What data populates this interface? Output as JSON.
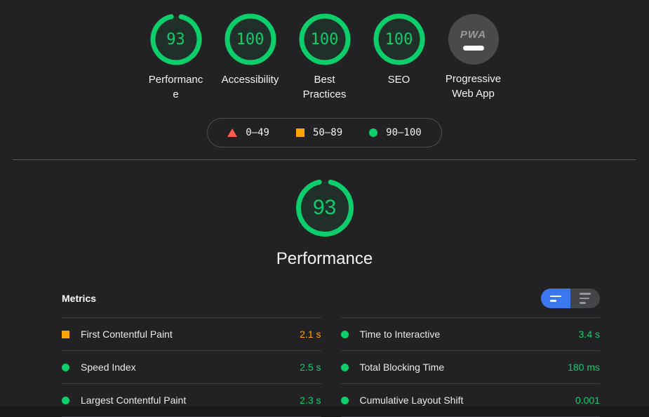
{
  "colors": {
    "pass": "#0cce6b",
    "average": "#ffa400",
    "fail": "#ff5a50",
    "accent_blue": "#3b78f0"
  },
  "score_gauges": [
    {
      "label": "Performance",
      "score": "93",
      "value": 93,
      "type": "gauge"
    },
    {
      "label": "Accessibility",
      "score": "100",
      "value": 100,
      "type": "gauge"
    },
    {
      "label": "Best Practices",
      "score": "100",
      "value": 100,
      "type": "gauge"
    },
    {
      "label": "SEO",
      "score": "100",
      "value": 100,
      "type": "gauge"
    },
    {
      "label": "Progressive Web App",
      "type": "pwa",
      "badge_text": "PWA"
    }
  ],
  "legend": [
    {
      "icon": "fail-triangle-icon",
      "shape": "triangle",
      "range": "0–49"
    },
    {
      "icon": "average-square-icon",
      "shape": "square",
      "range": "50–89"
    },
    {
      "icon": "pass-circle-icon",
      "shape": "circle",
      "range": "90–100"
    }
  ],
  "category_detail": {
    "score": "93",
    "value": 93,
    "title": "Performance"
  },
  "metrics": {
    "heading": "Metrics",
    "toggle": {
      "left": "condensed-metrics-view",
      "right": "expanded-metrics-view"
    },
    "columns": [
      [
        {
          "name": "First Contentful Paint",
          "value": "2.1 s",
          "status": "average"
        },
        {
          "name": "Speed Index",
          "value": "2.5 s",
          "status": "pass"
        },
        {
          "name": "Largest Contentful Paint",
          "value": "2.3 s",
          "status": "pass"
        }
      ],
      [
        {
          "name": "Time to Interactive",
          "value": "3.4 s",
          "status": "pass"
        },
        {
          "name": "Total Blocking Time",
          "value": "180 ms",
          "status": "pass"
        },
        {
          "name": "Cumulative Layout Shift",
          "value": "0.001",
          "status": "pass"
        }
      ]
    ]
  }
}
